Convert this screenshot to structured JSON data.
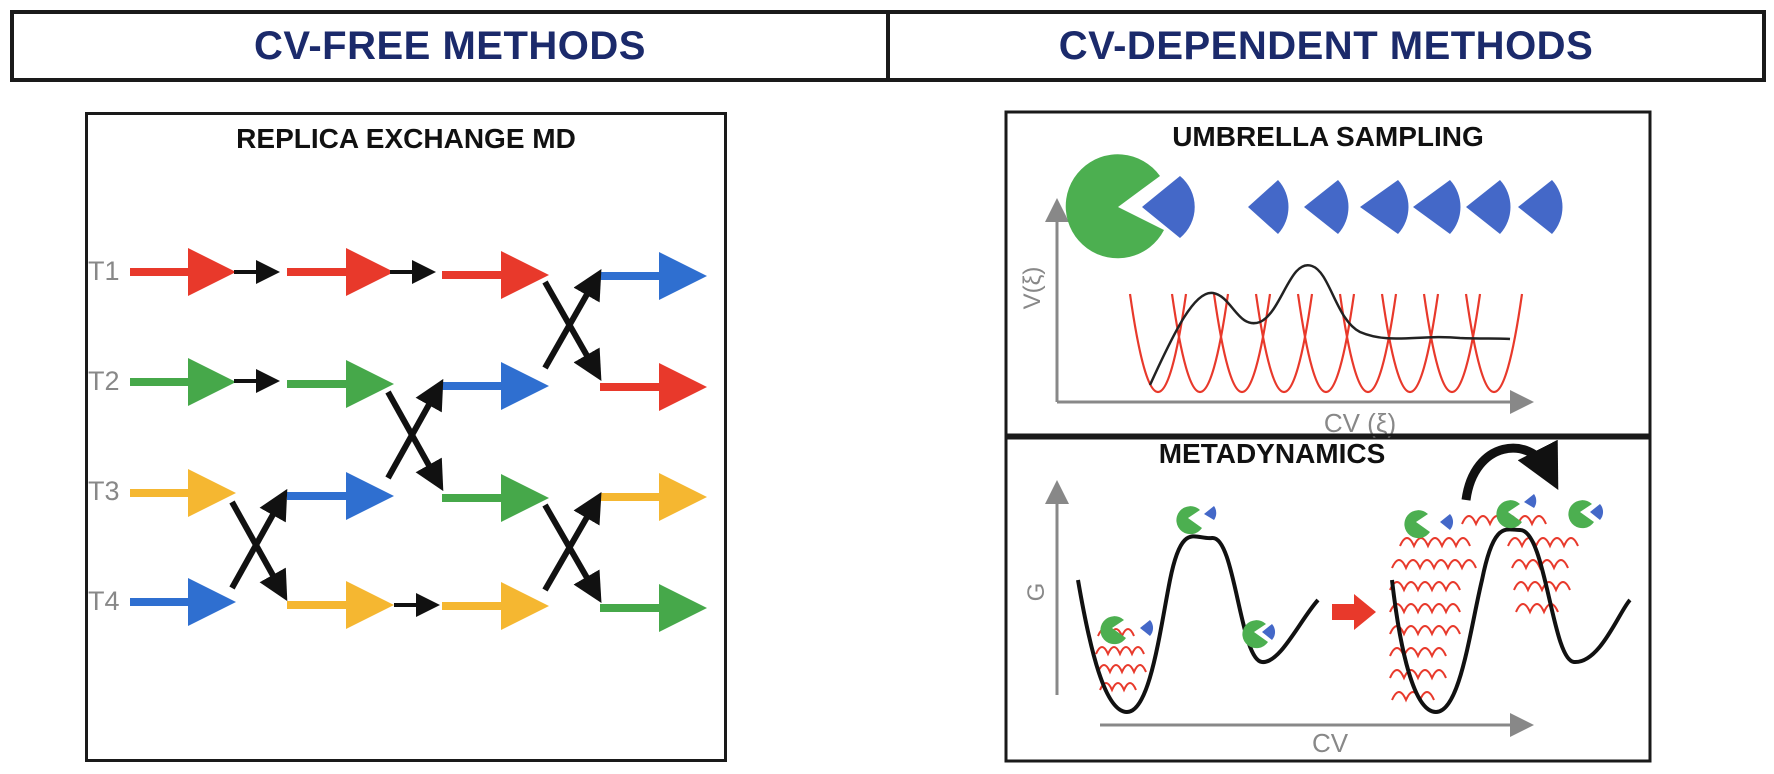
{
  "headers": {
    "left": "CV-FREE METHODS",
    "right": "CV-DEPENDENT METHODS"
  },
  "replica_exchange": {
    "title": "REPLICA EXCHANGE MD",
    "rows": [
      "T1",
      "T2",
      "T3",
      "T4"
    ]
  },
  "umbrella": {
    "title": "UMBRELLA SAMPLING",
    "ylabel": "V(ξ)",
    "xlabel": "CV (ξ)"
  },
  "metadynamics": {
    "title": "METADYNAMICS",
    "ylabel": "G",
    "xlabel": "CV"
  },
  "colors": {
    "header_text": "#1b2a6b",
    "red": "#e8392b",
    "green": "#46a84a",
    "yellow": "#f5b731",
    "blue": "#2f6fd0",
    "pacman_green": "#4caf50",
    "wedge_blue": "#4468c8",
    "axis_grey": "#888888"
  }
}
